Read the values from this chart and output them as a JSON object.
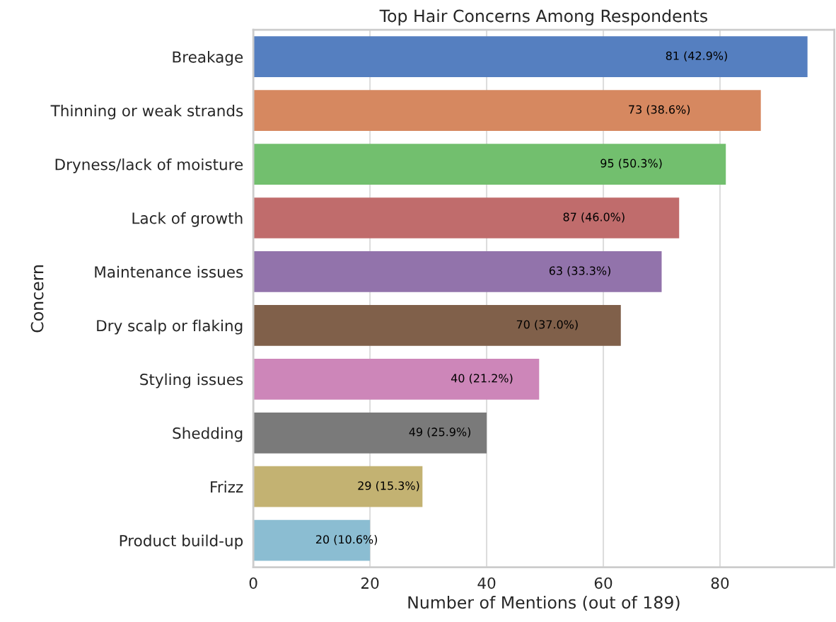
{
  "chart_data": {
    "type": "bar",
    "orientation": "horizontal",
    "title": "Top Hair Concerns Among Respondents",
    "xlabel": "Number of Mentions (out of 189)",
    "ylabel": "Concern",
    "categories": [
      "Breakage",
      "Thinning or weak strands",
      "Dryness/lack of moisture",
      "Lack of growth",
      "Maintenance issues",
      "Dry scalp or flaking",
      "Styling issues",
      "Shedding",
      "Frizz",
      "Product build-up"
    ],
    "values": [
      95,
      87,
      81,
      73,
      70,
      63,
      49,
      40,
      29,
      20
    ],
    "colors": [
      "#557fc0",
      "#d68860",
      "#72bf6e",
      "#c06c6c",
      "#9273ab",
      "#80604a",
      "#cd86b9",
      "#7a7a7a",
      "#c3b272",
      "#8bbdd2"
    ],
    "annotations": [
      "81 (42.9%)",
      "73 (38.6%)",
      "95 (50.3%)",
      "87 (46.0%)",
      "63 (33.3%)",
      "70 (37.0%)",
      "40 (21.2%)",
      "49 (25.9%)",
      "29 (15.3%)",
      "20 (10.6%)"
    ],
    "xlim": [
      0,
      99.6
    ],
    "xticks": [
      0,
      20,
      40,
      60,
      80
    ],
    "grid": "x"
  }
}
